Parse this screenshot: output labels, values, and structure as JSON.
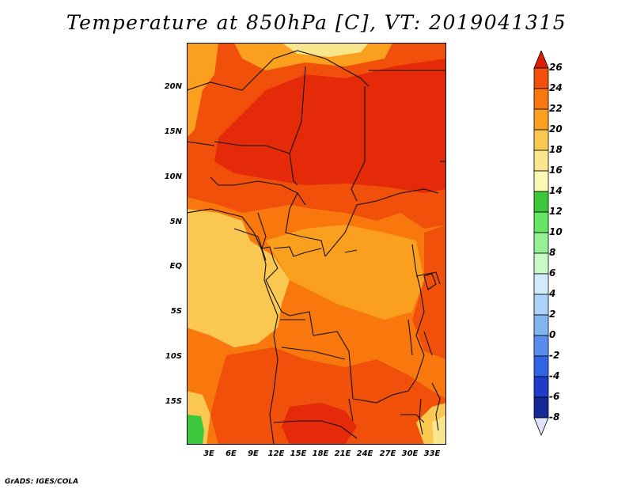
{
  "title": "Temperature at 850hPa [C], VT: 2019041315",
  "footer": "GrADS: IGES/COLA",
  "map": {
    "lat_labels": [
      "20N",
      "15N",
      "10N",
      "5N",
      "EQ",
      "5S",
      "10S",
      "15S"
    ],
    "lon_labels": [
      "3E",
      "6E",
      "9E",
      "12E",
      "15E",
      "18E",
      "21E",
      "24E",
      "27E",
      "30E",
      "33E"
    ]
  },
  "colorbar": {
    "levels": [
      "26",
      "24",
      "22",
      "20",
      "18",
      "16",
      "14",
      "12",
      "10",
      "8",
      "6",
      "4",
      "2",
      "0",
      "-2",
      "-4",
      "-6",
      "-8"
    ],
    "colors": [
      "#e52a0a",
      "#f0500a",
      "#f8780e",
      "#faa01e",
      "#fac850",
      "#fae68c",
      "#fafab4",
      "#3cc83c",
      "#64e664",
      "#96f096",
      "#c8fac8",
      "#d2ebfa",
      "#aad2fa",
      "#82b4f0",
      "#5a8cf0",
      "#3264e6",
      "#1e3cc8",
      "#142896",
      "#0a0a64"
    ],
    "top_color": "#dc1e06",
    "bottom_color": "#e0e4fa"
  }
}
